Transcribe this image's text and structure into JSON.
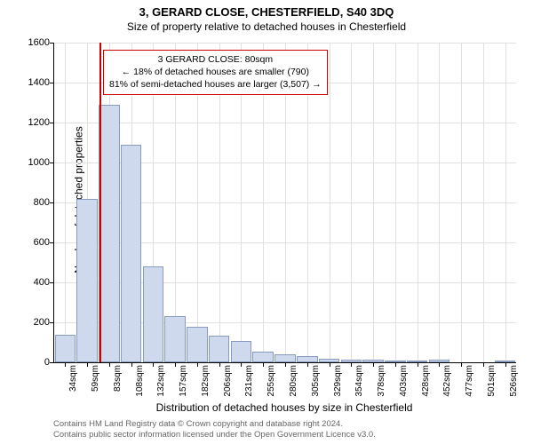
{
  "title": "3, GERARD CLOSE, CHESTERFIELD, S40 3DQ",
  "subtitle": "Size of property relative to detached houses in Chesterfield",
  "ylabel": "Number of detached properties",
  "xlabel": "Distribution of detached houses by size in Chesterfield",
  "chart": {
    "type": "histogram",
    "ylim": [
      0,
      1600
    ],
    "ytick_step": 200,
    "background_color": "#ffffff",
    "grid_color": "#e0e0e0",
    "bar_fill": "#cfd9ed",
    "bar_border": "#8a9bc0",
    "marker_color": "#cc0000",
    "marker_x_index": 2,
    "categories": [
      "34sqm",
      "59sqm",
      "83sqm",
      "108sqm",
      "132sqm",
      "157sqm",
      "182sqm",
      "206sqm",
      "231sqm",
      "255sqm",
      "280sqm",
      "305sqm",
      "329sqm",
      "354sqm",
      "378sqm",
      "403sqm",
      "428sqm",
      "452sqm",
      "477sqm",
      "501sqm",
      "526sqm"
    ],
    "values": [
      140,
      820,
      1290,
      1090,
      480,
      230,
      180,
      135,
      105,
      55,
      40,
      30,
      20,
      12,
      12,
      10,
      8,
      12,
      0,
      0,
      5
    ]
  },
  "info_box": {
    "line1": "3 GERARD CLOSE: 80sqm",
    "line2": "← 18% of detached houses are smaller (790)",
    "line3": "81% of semi-detached houses are larger (3,507) →"
  },
  "footer": {
    "line1": "Contains HM Land Registry data © Crown copyright and database right 2024.",
    "line2": "Contains public sector information licensed under the Open Government Licence v3.0."
  }
}
